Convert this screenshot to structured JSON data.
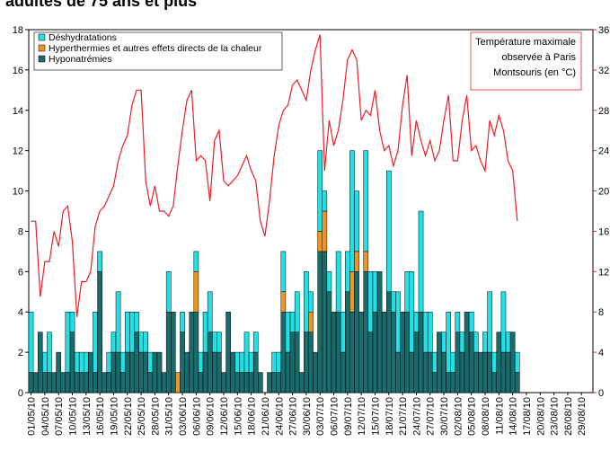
{
  "chart_data": {
    "type": "bar",
    "title": "adultes de 75 ans et plus",
    "annotation": [
      "Température maximale",
      "observée à Paris",
      "Montsouris (en °C)"
    ],
    "categories": [
      "01/05/10",
      null,
      null,
      "04/05/10",
      null,
      null,
      "07/05/10",
      null,
      null,
      "10/05/10",
      null,
      null,
      "13/05/10",
      null,
      null,
      "16/05/10",
      null,
      null,
      "19/05/10",
      null,
      null,
      "22/05/10",
      null,
      null,
      "25/05/10",
      null,
      null,
      "28/05/10",
      null,
      null,
      "31/05/10",
      null,
      null,
      "03/06/10",
      null,
      null,
      "06/06/10",
      null,
      null,
      "09/06/10",
      null,
      null,
      "12/06/10",
      null,
      null,
      "15/06/10",
      null,
      null,
      "18/06/10",
      null,
      null,
      "21/06/10",
      null,
      null,
      "24/06/10",
      null,
      null,
      "27/06/10",
      null,
      null,
      "30/06/10",
      null,
      null,
      "03/07/10",
      null,
      null,
      "06/07/10",
      null,
      null,
      "09/07/10",
      null,
      null,
      "12/07/10",
      null,
      null,
      "15/07/10",
      null,
      null,
      "18/07/10",
      null,
      null,
      "21/07/10",
      null,
      null,
      "24/07/10",
      null,
      null,
      "27/07/10",
      null,
      null,
      "30/07/10",
      null,
      null,
      "02/08/10",
      null,
      null,
      "05/08/10",
      null,
      null,
      "08/08/10",
      null,
      null,
      "11/08/10",
      null,
      null,
      "14/08/10",
      null,
      null,
      "17/08/10",
      null,
      null,
      "20/08/10",
      null,
      null,
      "23/08/10",
      null,
      null,
      "26/08/10",
      null,
      null,
      "29/08/10",
      null,
      null
    ],
    "series": [
      {
        "name": "Hyponatrémies",
        "color": "#1a6b6b",
        "values": [
          1,
          1,
          3,
          1,
          1,
          1,
          2,
          1,
          1,
          3,
          1,
          1,
          1,
          2,
          1,
          6,
          1,
          1,
          2,
          2,
          1,
          2,
          2,
          3,
          2,
          2,
          1,
          2,
          2,
          1,
          4,
          4,
          0,
          3,
          2,
          4,
          4,
          1,
          2,
          3,
          2,
          2,
          1,
          4,
          2,
          1,
          1,
          1,
          1,
          2,
          1,
          0,
          1,
          1,
          1,
          4,
          2,
          3,
          3,
          1,
          3,
          3,
          2,
          7,
          7,
          5,
          4,
          4,
          2,
          5,
          4,
          6,
          4,
          6,
          3,
          4,
          6,
          4,
          5,
          4,
          2,
          4,
          4,
          2,
          3,
          4,
          2,
          2,
          1,
          3,
          2,
          1,
          1,
          3,
          2,
          4,
          3,
          2,
          2,
          2,
          2,
          1,
          3,
          2,
          2,
          3,
          1,
          null,
          null,
          null,
          null,
          null,
          null,
          null,
          null,
          null,
          null,
          null,
          null,
          null,
          null,
          null,
          null
        ]
      },
      {
        "name": "Hyperthermies et autres effets directs de la chaleur",
        "color": "#f0961e",
        "values": [
          0,
          0,
          0,
          0,
          0,
          0,
          0,
          0,
          0,
          0,
          0,
          0,
          0,
          0,
          0,
          0,
          0,
          0,
          0,
          0,
          0,
          0,
          0,
          0,
          0,
          0,
          0,
          0,
          0,
          0,
          0,
          0,
          1,
          0,
          0,
          0,
          2,
          0,
          0,
          0,
          0,
          0,
          0,
          0,
          0,
          0,
          0,
          0,
          0,
          0,
          0,
          0,
          0,
          0,
          0,
          1,
          0,
          0,
          0,
          0,
          0,
          1,
          0,
          1,
          2,
          0,
          0,
          0,
          0,
          0,
          2,
          1,
          0,
          1,
          0,
          0,
          0,
          0,
          0,
          0,
          0,
          0,
          0,
          0,
          0,
          0,
          0,
          0,
          0,
          0,
          0,
          0,
          0,
          0,
          0,
          0,
          0,
          0,
          0,
          0,
          0,
          0,
          0,
          0,
          0,
          0,
          0,
          null,
          null,
          null,
          null,
          null,
          null,
          null,
          null,
          null,
          null,
          null,
          null,
          null,
          null,
          null,
          null
        ]
      },
      {
        "name": "Déshydratations",
        "color": "#22e0e6",
        "values": [
          3,
          0,
          0,
          1,
          2,
          0,
          0,
          0,
          3,
          1,
          1,
          1,
          1,
          0,
          3,
          1,
          0,
          1,
          1,
          3,
          1,
          2,
          2,
          1,
          1,
          1,
          1,
          0,
          0,
          0,
          2,
          0,
          0,
          1,
          0,
          0,
          1,
          1,
          2,
          2,
          1,
          1,
          0,
          0,
          0,
          1,
          1,
          2,
          1,
          1,
          0,
          0,
          0,
          1,
          1,
          2,
          2,
          1,
          2,
          0,
          3,
          1,
          0,
          4,
          1,
          1,
          0,
          3,
          2,
          2,
          6,
          3,
          0,
          5,
          3,
          2,
          0,
          0,
          6,
          1,
          3,
          0,
          2,
          4,
          1,
          5,
          2,
          2,
          1,
          0,
          1,
          3,
          1,
          1,
          1,
          0,
          1,
          1,
          0,
          1,
          3,
          1,
          0,
          3,
          1,
          0,
          1,
          null,
          null,
          null,
          null,
          null,
          null,
          null,
          null,
          null,
          null,
          null,
          null,
          null,
          null,
          null,
          null
        ]
      },
      {
        "name": "Température maximale observée à Paris Montsouris",
        "type": "line",
        "axis": "y2",
        "color": "#e8202a",
        "values": [
          17,
          17,
          9.5,
          13,
          13,
          16,
          14.5,
          18,
          18.5,
          15,
          7.5,
          11,
          11,
          12,
          16.5,
          18,
          18.5,
          19.5,
          20.5,
          23,
          24.5,
          25.5,
          28.5,
          30,
          30,
          21,
          18.5,
          20.5,
          18,
          18,
          17.5,
          18.5,
          22.5,
          26,
          29,
          30,
          23,
          23.5,
          23,
          19,
          25,
          26,
          21,
          20.5,
          21,
          21.5,
          22.5,
          23.5,
          22,
          21,
          17,
          15.5,
          19,
          23.5,
          26.5,
          28,
          28.5,
          30.5,
          31,
          30,
          29,
          32,
          34,
          35.5,
          22,
          27,
          24.5,
          26,
          29,
          33,
          34,
          33,
          27,
          28,
          27.5,
          30,
          26,
          24,
          24.5,
          22.5,
          24,
          28.5,
          31.5,
          23.5,
          27,
          25,
          23.5,
          25,
          23,
          24,
          27,
          29.5,
          23,
          23,
          27,
          29.5,
          24,
          24.5,
          23,
          22,
          27,
          25.5,
          27.5,
          26,
          23,
          22,
          17,
          null,
          null,
          null,
          null,
          null,
          null,
          null,
          null,
          null,
          null,
          null,
          null,
          null,
          null,
          null,
          null
        ]
      }
    ],
    "ylim": [
      0,
      18
    ],
    "yticks": [
      0,
      2,
      4,
      6,
      8,
      10,
      12,
      14,
      16,
      18
    ],
    "y2lim": [
      0,
      36
    ],
    "y2ticks": [
      0,
      4,
      8,
      12,
      16,
      20,
      24,
      28,
      32,
      36
    ],
    "stacked": true,
    "legend": "upper left",
    "title_color": "#f07d14"
  }
}
